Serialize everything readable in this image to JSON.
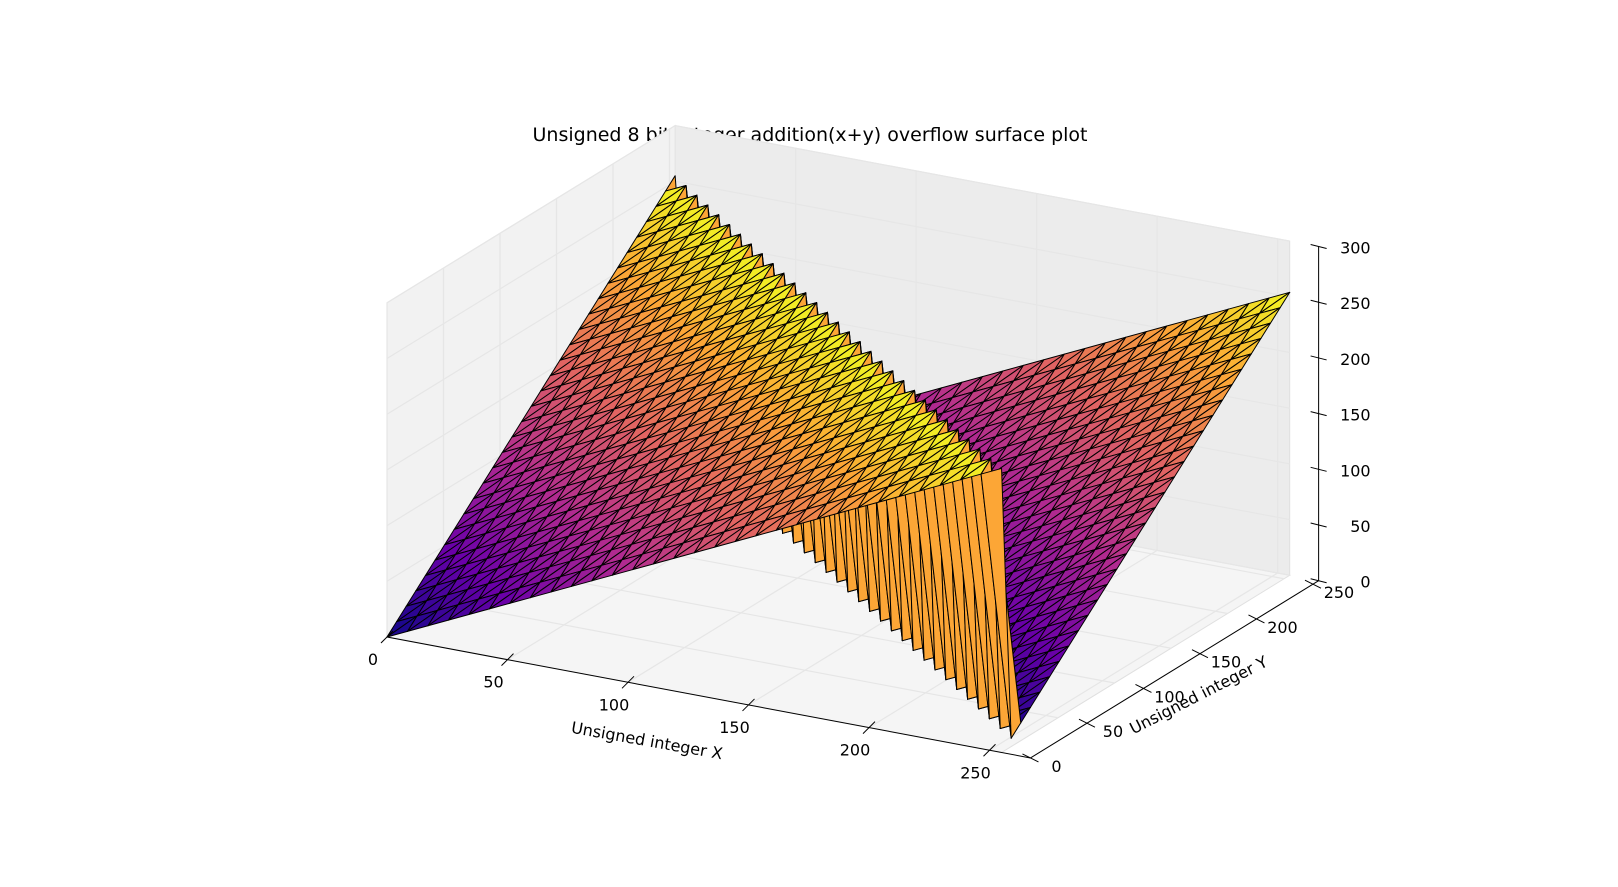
{
  "chart_data": {
    "type": "surface3d",
    "title": "Unsigned 8 bit integer addition(x+y) overflow surface plot",
    "xlabel": "Unsigned integer X",
    "ylabel": "Unsigned integer Y",
    "zlabel": "",
    "function": "(x + y) mod 256",
    "x_range": [
      0,
      255
    ],
    "y_range": [
      0,
      255
    ],
    "xlim": [
      0,
      255
    ],
    "ylim": [
      0,
      255
    ],
    "zlim": [
      0,
      300
    ],
    "x_ticks": [
      "0",
      "50",
      "100",
      "150",
      "200",
      "250"
    ],
    "y_ticks": [
      "0",
      "50",
      "100",
      "150",
      "200",
      "250"
    ],
    "z_ticks": [
      "0",
      "50",
      "100",
      "150",
      "200",
      "250",
      "300"
    ],
    "x_tick_values": [
      0,
      50,
      100,
      150,
      200,
      250
    ],
    "y_tick_values": [
      0,
      50,
      100,
      150,
      200,
      250
    ],
    "z_tick_values": [
      0,
      50,
      100,
      150,
      200,
      250,
      300
    ],
    "grid": true,
    "colormap": "plasma",
    "colormap_stops": [
      "#0d0887",
      "#6a00a8",
      "#b12a90",
      "#e16462",
      "#fca636",
      "#f0f921"
    ],
    "edge_color": "#000000",
    "pane_color": "#f2f2f2",
    "grid_color": "#e6e6e6"
  }
}
